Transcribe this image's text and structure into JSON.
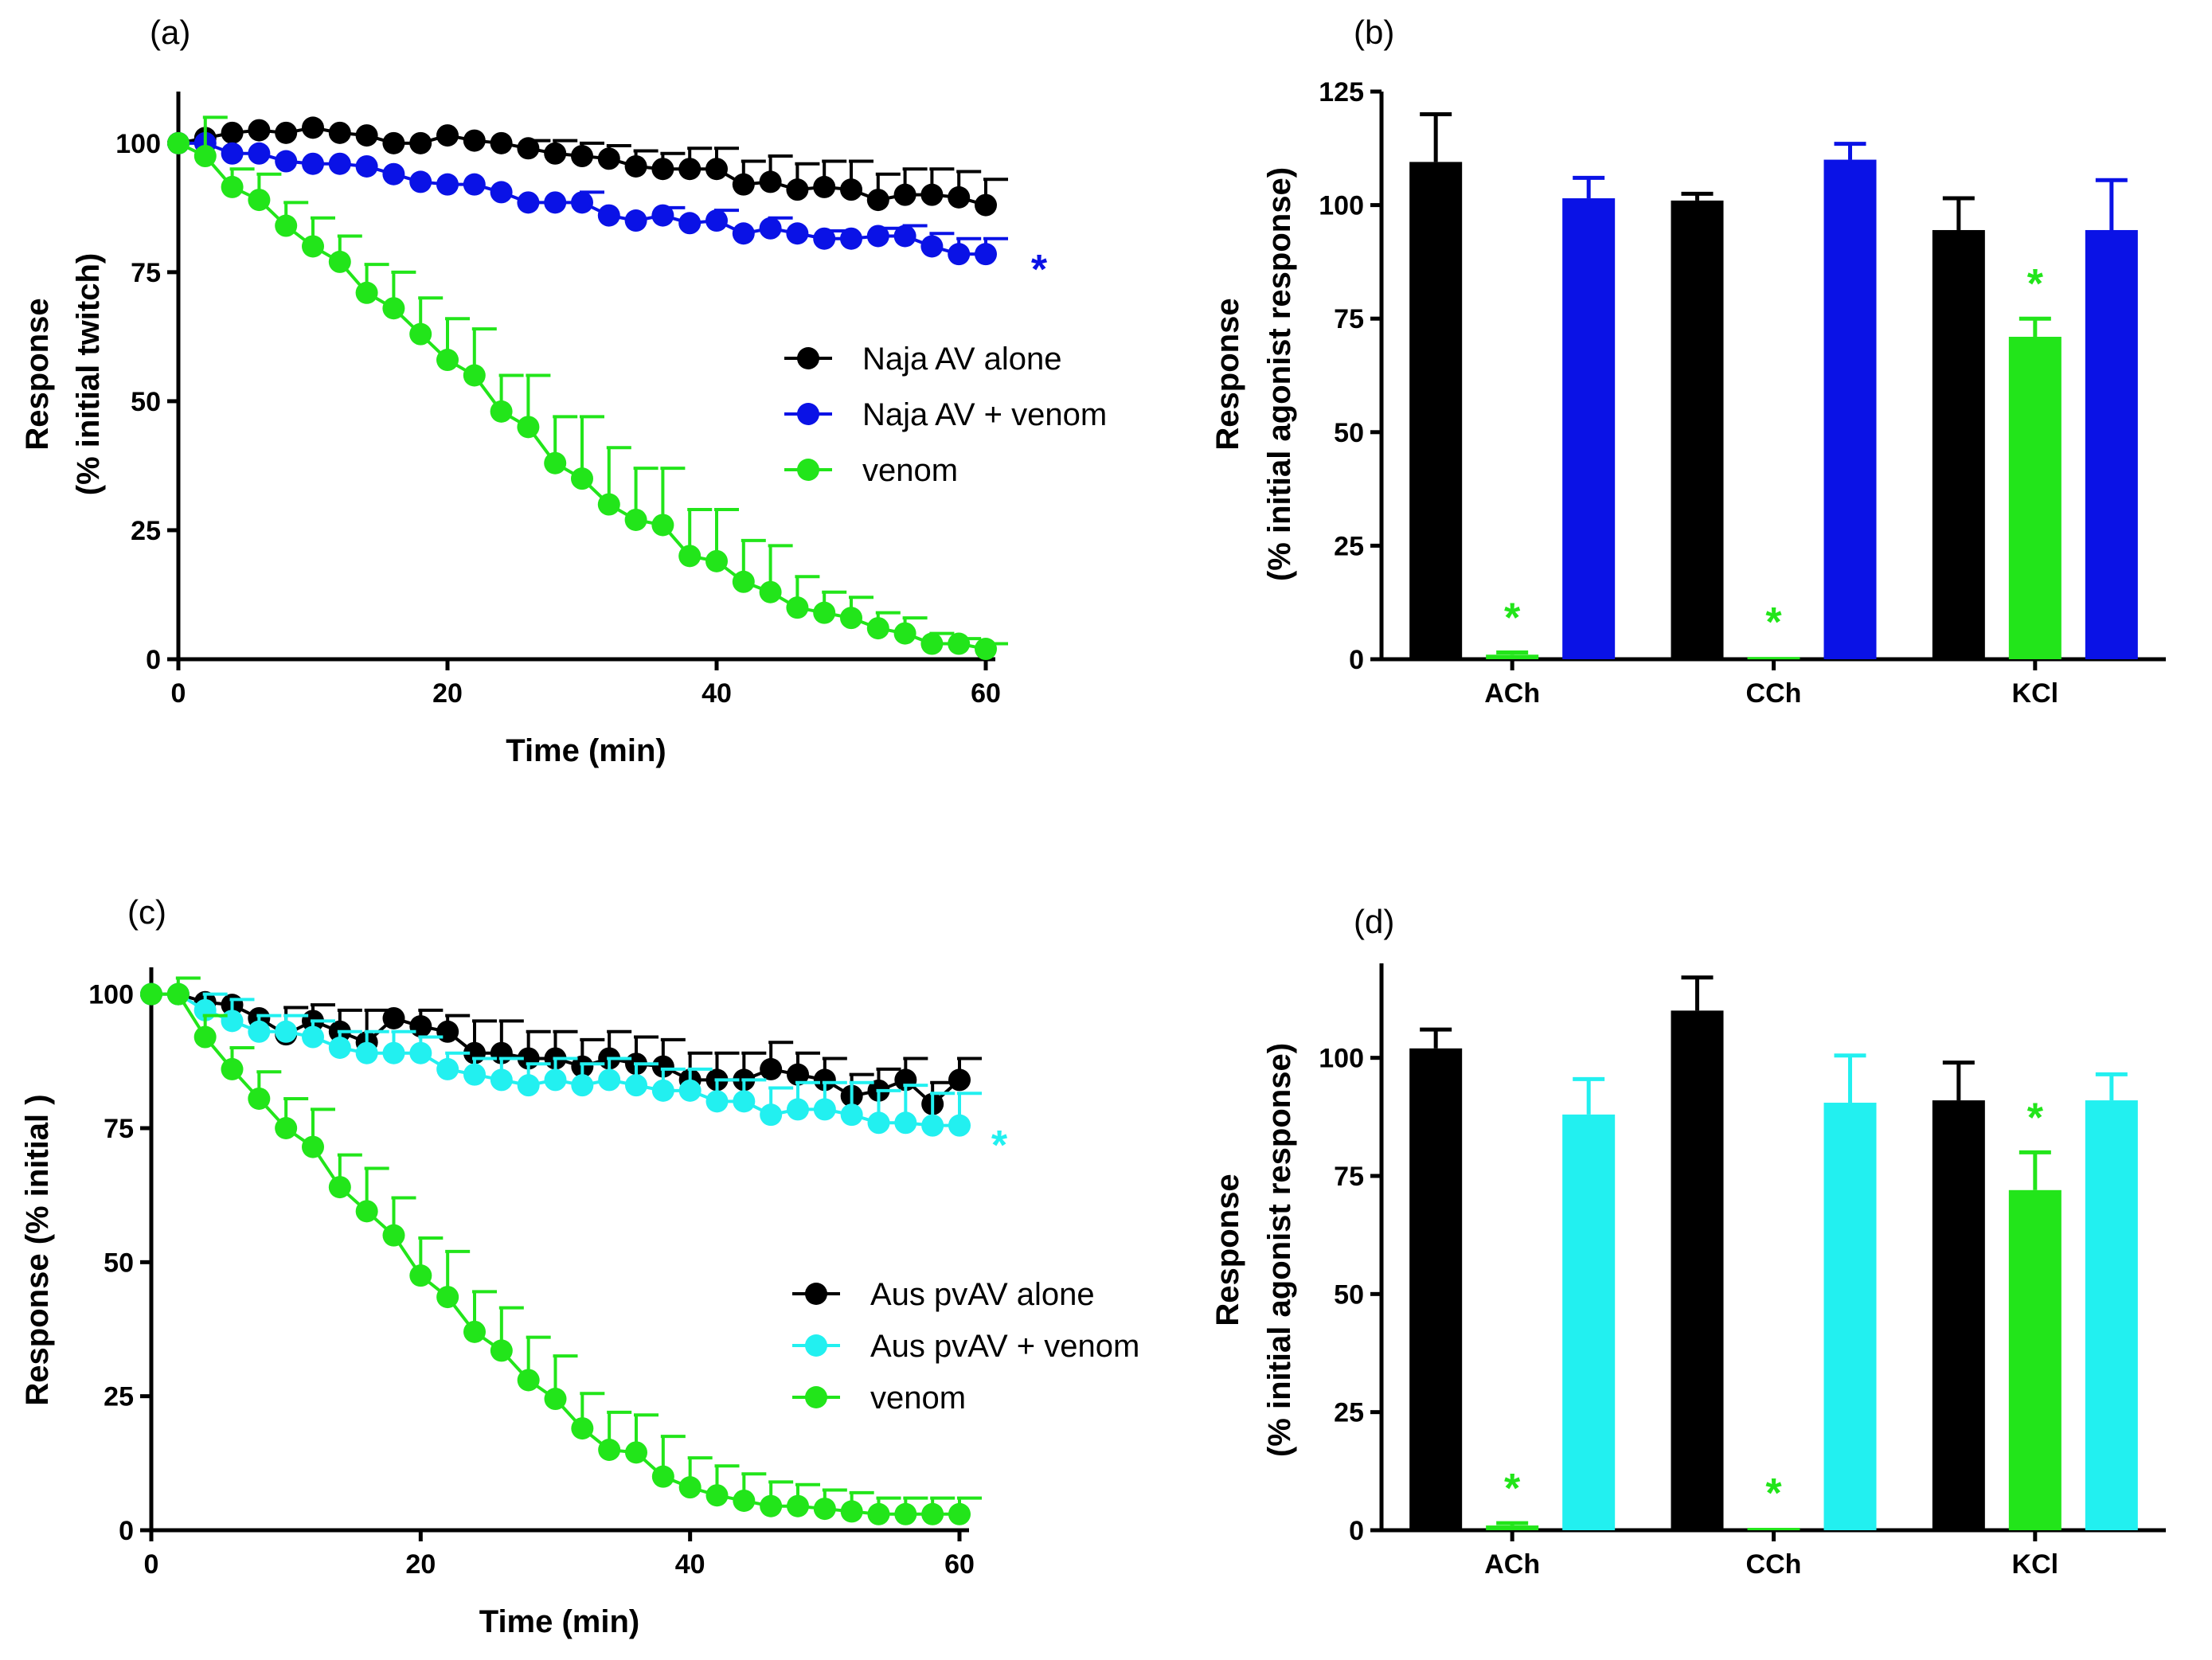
{
  "chart_data": [
    {
      "panel": "(a)",
      "type": "line",
      "xlabel": "Time (min)",
      "ylabel": [
        "Response",
        "(% initial twitch)"
      ],
      "xlim": [
        0,
        60
      ],
      "ylim": [
        0,
        110
      ],
      "xticks": [
        "0",
        "20",
        "40",
        "60"
      ],
      "yticks": [
        "0",
        "25",
        "50",
        "75",
        "100"
      ],
      "x": [
        0,
        2,
        4,
        6,
        8,
        10,
        12,
        14,
        16,
        18,
        20,
        22,
        24,
        26,
        28,
        30,
        32,
        34,
        36,
        38,
        40,
        42,
        44,
        46,
        48,
        50,
        52,
        54,
        56,
        58,
        60
      ],
      "series": [
        {
          "name": "Naja AV alone",
          "color": "#000000",
          "values": [
            100,
            101,
            102,
            102.5,
            102,
            103,
            102,
            101.5,
            100,
            100,
            101.5,
            100.5,
            100,
            99,
            98,
            97.5,
            97,
            95.5,
            95,
            95,
            95,
            92,
            92.5,
            91,
            91.5,
            91,
            89,
            90,
            90,
            89.5,
            88
          ],
          "errors": [
            0,
            0,
            0,
            0,
            0,
            0,
            0,
            0,
            0,
            0,
            0,
            0,
            0,
            1.5,
            2.5,
            2.5,
            2.5,
            3,
            3,
            4,
            4,
            4.5,
            5,
            5,
            5,
            5.5,
            5,
            5,
            5,
            5,
            5
          ]
        },
        {
          "name": "Naja AV + venom",
          "color": "#0a12e6",
          "values": [
            100,
            100,
            98,
            98,
            96.5,
            96,
            96,
            95.5,
            94,
            92.5,
            92,
            92,
            90.5,
            88.5,
            88.5,
            88.5,
            86,
            85,
            86,
            84.5,
            85,
            82.5,
            83.5,
            82.5,
            81.5,
            81.5,
            82,
            82,
            80,
            78.5,
            78.5
          ],
          "errors": [
            0,
            0,
            0,
            0,
            0,
            0,
            0,
            0,
            0,
            0,
            0,
            0,
            0,
            0,
            0,
            2,
            0,
            0,
            1.5,
            0,
            2,
            0,
            2,
            0,
            1.5,
            0,
            1.5,
            2,
            2.5,
            3,
            3
          ]
        },
        {
          "name": "venom",
          "color": "#22e51a",
          "values": [
            100,
            97.5,
            91.5,
            89,
            84,
            80,
            77,
            71,
            68,
            63,
            58,
            55,
            48,
            45,
            38,
            35,
            30,
            27,
            26,
            20,
            19,
            15,
            13,
            10,
            9,
            8,
            6,
            5,
            3,
            3,
            2
          ],
          "errors": [
            0,
            7.5,
            3.5,
            5,
            4.5,
            5.5,
            5,
            5.5,
            7,
            7,
            8,
            9,
            7,
            10,
            9,
            12,
            11,
            10,
            11,
            9,
            10,
            8,
            9,
            6,
            4,
            4,
            3,
            3,
            2,
            1,
            1
          ]
        }
      ],
      "annotations": [
        {
          "series": "Naja AV + venom",
          "text": "*",
          "color": "#0a12e6"
        }
      ]
    },
    {
      "panel": "(b)",
      "type": "bar",
      "ylabel": [
        "Response",
        "(% initial agonist response)"
      ],
      "ylim": [
        0,
        125
      ],
      "yticks": [
        "0",
        "25",
        "50",
        "75",
        "100",
        "125"
      ],
      "categories": [
        "ACh",
        "CCh",
        "KCl"
      ],
      "series": [
        {
          "name": "Naja AV alone",
          "color": "#000000",
          "values": [
            109.5,
            101,
            94.5
          ],
          "errors": [
            10.5,
            1.5,
            7
          ]
        },
        {
          "name": "venom",
          "color": "#22e51a",
          "values": [
            1,
            0.5,
            71
          ],
          "errors": [
            0.5,
            0,
            4
          ]
        },
        {
          "name": "Naja AV + venom",
          "color": "#0a12e6",
          "values": [
            101.5,
            110,
            94.5
          ],
          "errors": [
            4.5,
            3.5,
            11
          ]
        }
      ],
      "annotations": [
        {
          "category": "ACh",
          "series": "venom",
          "text": "*",
          "color": "#22e51a"
        },
        {
          "category": "CCh",
          "series": "venom",
          "text": "*",
          "color": "#22e51a"
        },
        {
          "category": "KCl",
          "series": "venom",
          "text": "*",
          "color": "#22e51a"
        }
      ]
    },
    {
      "panel": "(c)",
      "type": "line",
      "xlabel": "Time (min)",
      "ylabel": [
        "Response (% initial )"
      ],
      "xlim": [
        0,
        60
      ],
      "ylim": [
        0,
        105
      ],
      "xticks": [
        "0",
        "20",
        "40",
        "60"
      ],
      "yticks": [
        "0",
        "25",
        "50",
        "75",
        "100"
      ],
      "x": [
        0,
        2,
        4,
        6,
        8,
        10,
        12,
        14,
        16,
        18,
        20,
        22,
        24,
        26,
        28,
        30,
        32,
        34,
        36,
        38,
        40,
        42,
        44,
        46,
        48,
        50,
        52,
        54,
        56,
        58,
        60
      ],
      "series": [
        {
          "name": "Aus pvAV alone",
          "color": "#000000",
          "values": [
            100,
            100,
            98.5,
            98,
            95.5,
            92.5,
            95,
            93,
            91,
            95.5,
            94,
            93,
            89,
            89,
            88,
            88,
            86.5,
            88,
            87,
            86.5,
            84,
            84,
            84,
            86,
            85,
            84,
            81,
            82,
            84,
            79.5,
            84
          ],
          "errors": [
            0,
            0,
            0,
            0,
            0,
            5,
            3,
            4,
            6,
            0,
            3,
            3,
            6,
            6,
            5,
            5,
            5,
            5,
            5,
            5,
            5,
            5,
            5,
            5,
            4,
            4,
            4,
            4,
            4,
            4,
            4
          ]
        },
        {
          "name": "Aus pvAV + venom",
          "color": "#22f0f0",
          "values": [
            100,
            100,
            97,
            95,
            93,
            93,
            92,
            90,
            89,
            89,
            89,
            86,
            85,
            84,
            83,
            84,
            83,
            84,
            83,
            82,
            82,
            80,
            80,
            77.5,
            78.5,
            78.5,
            77.5,
            76,
            76,
            75.5,
            75.5
          ],
          "errors": [
            0,
            0,
            3,
            4,
            3,
            3,
            3,
            3,
            4,
            4,
            3,
            3,
            3,
            4,
            4,
            4,
            4,
            4,
            4,
            4,
            4,
            4,
            4,
            5,
            5,
            5,
            6,
            6,
            7,
            6,
            6
          ]
        },
        {
          "name": "venom",
          "color": "#22e51a",
          "values": [
            100,
            100,
            92,
            86,
            80.5,
            75,
            71.5,
            64,
            59.5,
            55,
            47.5,
            43.5,
            37,
            33.5,
            28,
            24.5,
            19,
            15,
            14.5,
            10,
            8,
            6.5,
            5.5,
            4.5,
            4.5,
            4,
            3.5,
            3,
            3,
            3,
            3
          ],
          "errors": [
            0,
            3,
            4,
            4,
            5,
            5.5,
            7,
            6,
            8,
            7,
            7,
            8.5,
            7.5,
            8,
            8,
            8,
            6.5,
            7,
            7,
            7.5,
            5.5,
            5.5,
            5,
            4.5,
            4,
            3.5,
            3.5,
            3,
            3,
            3,
            3
          ]
        }
      ],
      "annotations": [
        {
          "series": "Aus pvAV + venom",
          "text": "*",
          "color": "#22f0f0"
        }
      ]
    },
    {
      "panel": "(d)",
      "type": "bar",
      "ylabel": [
        "Response",
        "(% initial agonist response)"
      ],
      "ylim": [
        0,
        120
      ],
      "yticks": [
        "0",
        "25",
        "50",
        "75",
        "100"
      ],
      "categories": [
        "ACh",
        "CCh",
        "KCl"
      ],
      "series": [
        {
          "name": "Aus pvAV alone",
          "color": "#000000",
          "values": [
            102,
            110,
            91
          ],
          "errors": [
            4,
            7,
            8
          ]
        },
        {
          "name": "venom",
          "color": "#22e51a",
          "values": [
            1,
            0.5,
            72
          ],
          "errors": [
            0.5,
            0,
            8
          ]
        },
        {
          "name": "Aus pvAV + venom",
          "color": "#22f0f0",
          "values": [
            88,
            90.5,
            91
          ],
          "errors": [
            7.5,
            10,
            5.5
          ]
        }
      ],
      "annotations": [
        {
          "category": "ACh",
          "series": "venom",
          "text": "*",
          "color": "#22e51a"
        },
        {
          "category": "CCh",
          "series": "venom",
          "text": "*",
          "color": "#22e51a"
        },
        {
          "category": "KCl",
          "series": "venom",
          "text": "*",
          "color": "#22e51a"
        }
      ]
    }
  ]
}
